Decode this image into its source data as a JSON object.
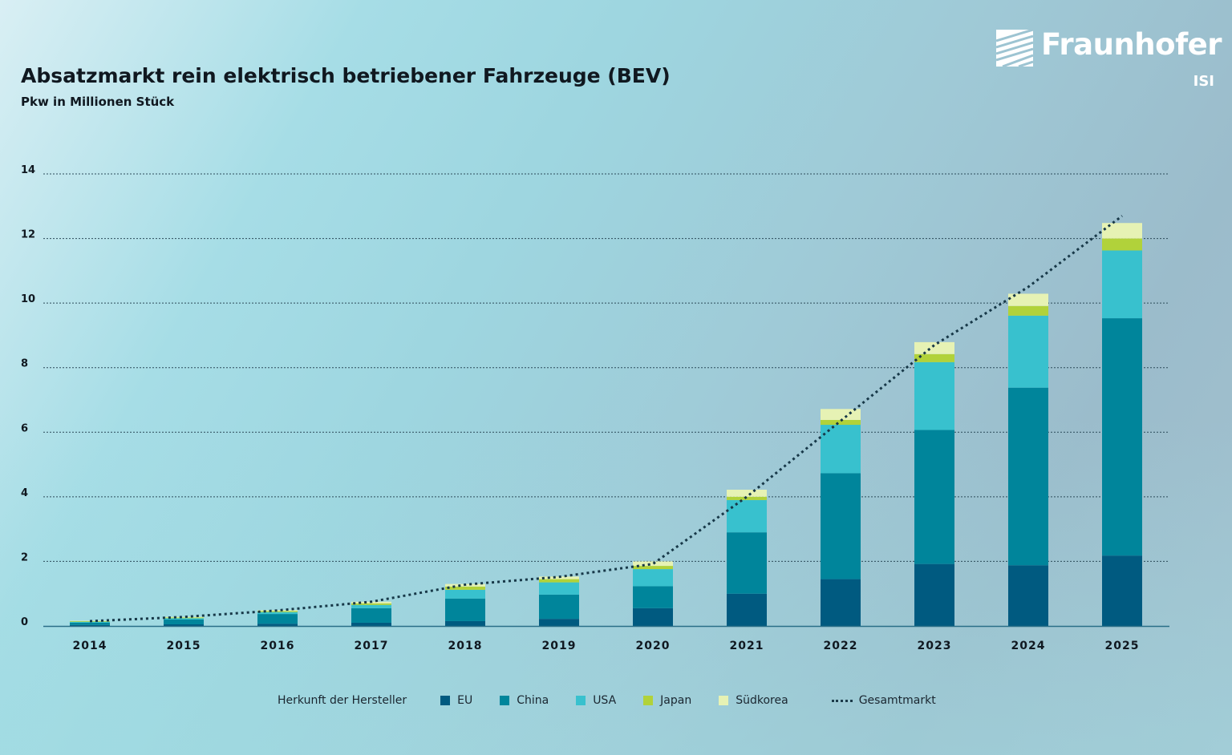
{
  "header": {
    "title": "Absatzmarkt rein elektrisch betriebener Fahrzeuge (BEV)",
    "subtitle": "Pkw in Millionen Stück"
  },
  "logo": {
    "name": "Fraunhofer",
    "sub": "ISI"
  },
  "legend": {
    "title": "Herkunft der Hersteller",
    "line_label": "Gesamtmarkt"
  },
  "chart_data": {
    "type": "bar",
    "stacked": true,
    "title": "Absatzmarkt rein elektrisch betriebener Fahrzeuge (BEV)",
    "subtitle": "Pkw in Millionen Stück",
    "categories": [
      "2014",
      "2015",
      "2016",
      "2017",
      "2018",
      "2019",
      "2020",
      "2021",
      "2022",
      "2023",
      "2024",
      "2025"
    ],
    "ylim": [
      0,
      14
    ],
    "yticks": [
      0,
      2,
      4,
      6,
      8,
      10,
      12,
      14
    ],
    "grid": true,
    "legend_position": "bottom",
    "series": [
      {
        "name": "EU",
        "color": "#005a80",
        "values": [
          0.03,
          0.05,
          0.07,
          0.1,
          0.15,
          0.22,
          0.55,
          1.0,
          1.45,
          1.92,
          1.88,
          2.18
        ]
      },
      {
        "name": "China",
        "color": "#00859b",
        "values": [
          0.07,
          0.15,
          0.3,
          0.45,
          0.7,
          0.75,
          0.68,
          1.9,
          3.28,
          4.15,
          5.5,
          7.35
        ]
      },
      {
        "name": "USA",
        "color": "#38c1ce",
        "values": [
          0.03,
          0.04,
          0.06,
          0.1,
          0.27,
          0.38,
          0.53,
          1.0,
          1.5,
          2.1,
          2.23,
          2.1
        ]
      },
      {
        "name": "Japan",
        "color": "#b1d23a",
        "values": [
          0.02,
          0.02,
          0.03,
          0.05,
          0.1,
          0.1,
          0.1,
          0.1,
          0.15,
          0.25,
          0.3,
          0.37
        ]
      },
      {
        "name": "Südkorea",
        "color": "#e6f2b4",
        "values": [
          0.01,
          0.02,
          0.03,
          0.05,
          0.08,
          0.08,
          0.14,
          0.22,
          0.34,
          0.37,
          0.38,
          0.48
        ]
      }
    ],
    "line": {
      "name": "Gesamtmarkt",
      "color": "#173848",
      "values": [
        0.15,
        0.28,
        0.48,
        0.75,
        1.28,
        1.52,
        1.92,
        4.0,
        6.35,
        8.7,
        10.5,
        12.7
      ]
    }
  }
}
